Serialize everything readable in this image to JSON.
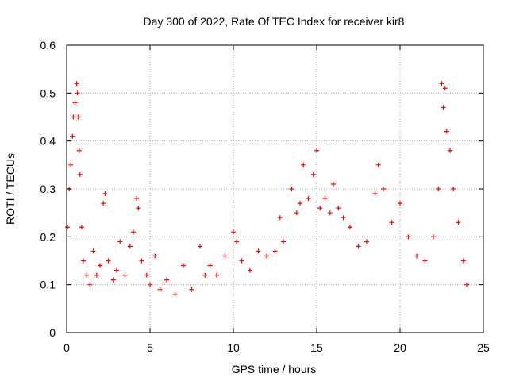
{
  "chart_data": {
    "type": "scatter",
    "title": "Day 300 of 2022, Rate Of TEC Index for receiver kir8",
    "xlabel": "GPS time / hours",
    "ylabel": "ROTI / TECUs",
    "xlim": [
      0,
      25
    ],
    "ylim": [
      0,
      0.6
    ],
    "x_ticks": [
      0,
      5,
      10,
      15,
      20,
      25
    ],
    "y_ticks": [
      0,
      0.1,
      0.2,
      0.3,
      0.4,
      0.5,
      0.6
    ],
    "grid": true,
    "marker": "+",
    "series": [
      {
        "name": "ROTI",
        "color": "#ff0000",
        "x": [
          0.05,
          0.15,
          0.25,
          0.35,
          0.4,
          0.5,
          0.6,
          0.65,
          0.7,
          0.75,
          0.8,
          0.9,
          1.0,
          1.2,
          1.4,
          1.6,
          1.8,
          2.0,
          2.2,
          2.3,
          2.5,
          2.8,
          3.0,
          3.2,
          3.5,
          3.8,
          4.0,
          4.2,
          4.3,
          4.5,
          4.8,
          5.0,
          5.3,
          5.6,
          6.0,
          6.5,
          7.0,
          7.5,
          8.0,
          8.3,
          8.6,
          9.0,
          9.5,
          10.0,
          10.2,
          10.5,
          11.0,
          11.5,
          12.0,
          12.5,
          12.8,
          13.0,
          13.5,
          13.8,
          14.0,
          14.2,
          14.5,
          14.8,
          15.0,
          15.2,
          15.5,
          15.8,
          16.0,
          16.3,
          16.6,
          17.0,
          17.5,
          18.0,
          18.5,
          18.7,
          19.0,
          19.5,
          20.0,
          20.5,
          21.0,
          21.5,
          22.0,
          22.3,
          22.5,
          22.6,
          22.7,
          22.8,
          23.0,
          23.2,
          23.5,
          23.8,
          24.0
        ],
        "y": [
          0.22,
          0.3,
          0.35,
          0.41,
          0.45,
          0.48,
          0.52,
          0.5,
          0.45,
          0.38,
          0.33,
          0.22,
          0.15,
          0.12,
          0.1,
          0.17,
          0.12,
          0.14,
          0.27,
          0.29,
          0.15,
          0.11,
          0.13,
          0.19,
          0.12,
          0.18,
          0.21,
          0.28,
          0.26,
          0.15,
          0.12,
          0.1,
          0.16,
          0.09,
          0.11,
          0.08,
          0.14,
          0.09,
          0.18,
          0.12,
          0.14,
          0.12,
          0.16,
          0.21,
          0.19,
          0.15,
          0.13,
          0.17,
          0.16,
          0.17,
          0.24,
          0.19,
          0.3,
          0.25,
          0.27,
          0.35,
          0.28,
          0.33,
          0.38,
          0.26,
          0.28,
          0.25,
          0.31,
          0.26,
          0.24,
          0.22,
          0.18,
          0.19,
          0.29,
          0.35,
          0.3,
          0.23,
          0.27,
          0.2,
          0.16,
          0.15,
          0.2,
          0.3,
          0.52,
          0.47,
          0.51,
          0.42,
          0.38,
          0.3,
          0.23,
          0.15,
          0.1
        ]
      }
    ]
  }
}
